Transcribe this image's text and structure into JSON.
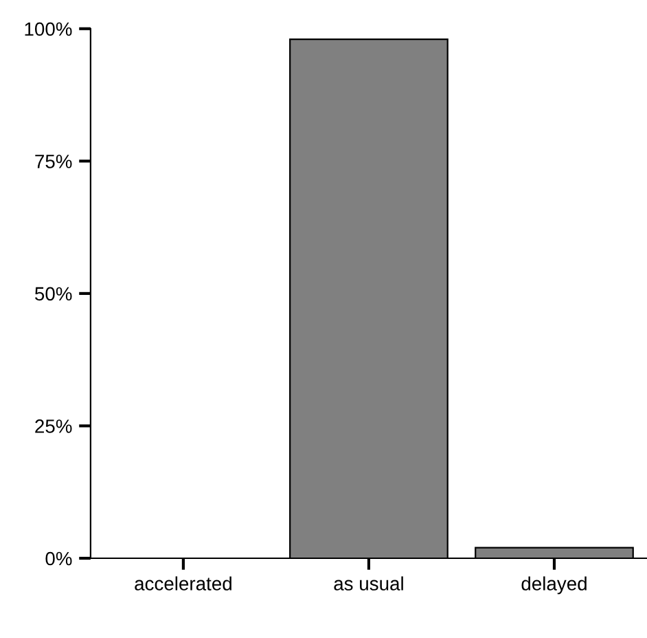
{
  "chart_data": {
    "type": "bar",
    "categories": [
      "accelerated",
      "as usual",
      "delayed"
    ],
    "values": [
      0,
      98,
      2
    ],
    "color": "#808080",
    "ylim": [
      0,
      100
    ],
    "yticks": [
      {
        "value": 0,
        "label": "0%"
      },
      {
        "value": 25,
        "label": "25%"
      },
      {
        "value": 50,
        "label": "50%"
      },
      {
        "value": 75,
        "label": "75%"
      },
      {
        "value": 100,
        "label": "100%"
      }
    ],
    "grid": false
  }
}
